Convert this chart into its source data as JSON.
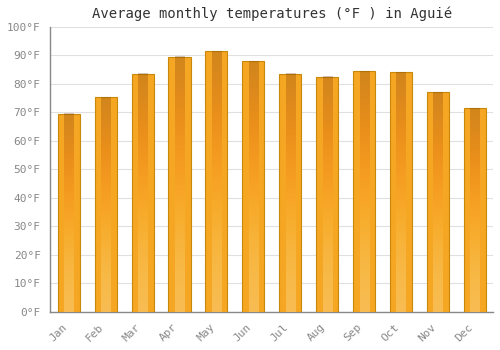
{
  "title": "Average monthly temperatures (°F ) in Aguié",
  "months": [
    "Jan",
    "Feb",
    "Mar",
    "Apr",
    "May",
    "Jun",
    "Jul",
    "Aug",
    "Sep",
    "Oct",
    "Nov",
    "Dec"
  ],
  "values": [
    69.5,
    75.2,
    83.5,
    89.5,
    91.5,
    88.0,
    83.5,
    82.5,
    84.5,
    84.0,
    77.0,
    71.5
  ],
  "ylim": [
    0,
    100
  ],
  "yticks": [
    0,
    10,
    20,
    30,
    40,
    50,
    60,
    70,
    80,
    90,
    100
  ],
  "ytick_labels": [
    "0°F",
    "10°F",
    "20°F",
    "30°F",
    "40°F",
    "50°F",
    "60°F",
    "70°F",
    "80°F",
    "90°F",
    "100°F"
  ],
  "background_color": "#ffffff",
  "grid_color": "#e0e0e0",
  "bar_color_light": "#FFD04A",
  "bar_color_dark": "#F5A623",
  "bar_edge_color": "#C8890A",
  "title_fontsize": 10,
  "tick_fontsize": 8,
  "tick_color": "#888888",
  "bar_width": 0.6
}
